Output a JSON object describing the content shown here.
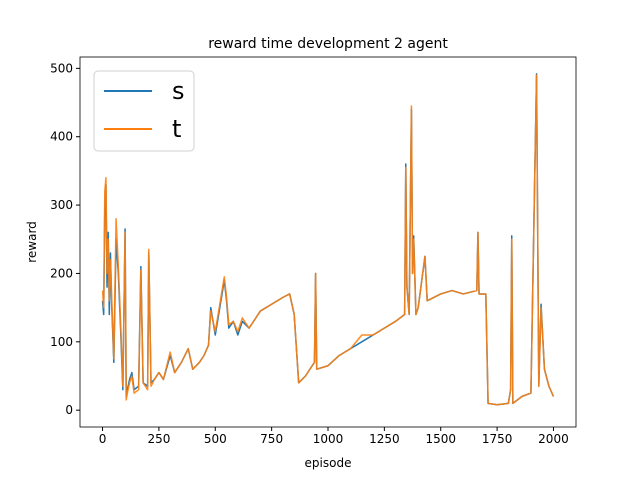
{
  "chart_data": {
    "type": "line",
    "title": "reward time development 2 agent",
    "x_label": "episode",
    "y_label": "reward",
    "x": [
      0,
      5,
      10,
      15,
      20,
      25,
      30,
      35,
      40,
      50,
      60,
      70,
      80,
      90,
      100,
      105,
      110,
      120,
      130,
      140,
      160,
      170,
      180,
      200,
      205,
      215,
      230,
      250,
      270,
      300,
      320,
      350,
      380,
      400,
      430,
      450,
      470,
      480,
      500,
      520,
      540,
      550,
      560,
      580,
      600,
      620,
      650,
      700,
      750,
      800,
      830,
      850,
      860,
      870,
      900,
      940,
      945,
      950,
      1000,
      1050,
      1100,
      1150,
      1200,
      1250,
      1300,
      1340,
      1345,
      1350,
      1360,
      1370,
      1375,
      1380,
      1390,
      1400,
      1430,
      1440,
      1500,
      1550,
      1600,
      1660,
      1665,
      1670,
      1700,
      1710,
      1750,
      1800,
      1810,
      1815,
      1820,
      1860,
      1900,
      1925,
      1935,
      1945,
      1960,
      1980,
      2000
    ],
    "series": [
      {
        "name": "s",
        "color": "#1f77b4",
        "values": [
          160,
          140,
          300,
          330,
          180,
          260,
          140,
          230,
          160,
          70,
          250,
          200,
          120,
          30,
          265,
          20,
          30,
          45,
          55,
          30,
          35,
          210,
          40,
          35,
          230,
          40,
          45,
          55,
          45,
          80,
          55,
          70,
          90,
          60,
          70,
          80,
          95,
          150,
          110,
          150,
          190,
          160,
          120,
          130,
          110,
          130,
          120,
          145,
          155,
          165,
          170,
          140,
          90,
          40,
          50,
          70,
          200,
          60,
          65,
          80,
          90,
          100,
          110,
          120,
          130,
          140,
          360,
          180,
          140,
          440,
          200,
          255,
          140,
          150,
          225,
          160,
          170,
          175,
          170,
          175,
          260,
          170,
          170,
          10,
          8,
          10,
          30,
          255,
          10,
          20,
          25,
          492,
          35,
          155,
          60,
          35,
          20
        ]
      },
      {
        "name": "t",
        "color": "#ff7f0e",
        "values": [
          175,
          150,
          320,
          340,
          200,
          250,
          160,
          220,
          170,
          75,
          280,
          210,
          130,
          35,
          260,
          15,
          25,
          40,
          50,
          25,
          30,
          205,
          40,
          30,
          235,
          35,
          45,
          55,
          45,
          85,
          55,
          70,
          90,
          60,
          70,
          80,
          95,
          145,
          115,
          155,
          195,
          165,
          125,
          130,
          115,
          135,
          120,
          145,
          155,
          165,
          170,
          140,
          90,
          40,
          50,
          70,
          200,
          60,
          65,
          80,
          90,
          110,
          110,
          120,
          130,
          140,
          355,
          180,
          140,
          445,
          200,
          250,
          140,
          150,
          225,
          160,
          170,
          175,
          170,
          175,
          260,
          170,
          170,
          10,
          8,
          10,
          30,
          250,
          10,
          20,
          25,
          490,
          35,
          150,
          60,
          35,
          20
        ]
      }
    ],
    "xlim": [
      -100,
      2100
    ],
    "ylim": [
      -24.6,
      516.6
    ],
    "xticks": [
      0,
      250,
      500,
      750,
      1000,
      1250,
      1500,
      1750,
      2000
    ],
    "yticks": [
      0,
      100,
      200,
      300,
      400,
      500
    ],
    "legend": "upper left"
  }
}
